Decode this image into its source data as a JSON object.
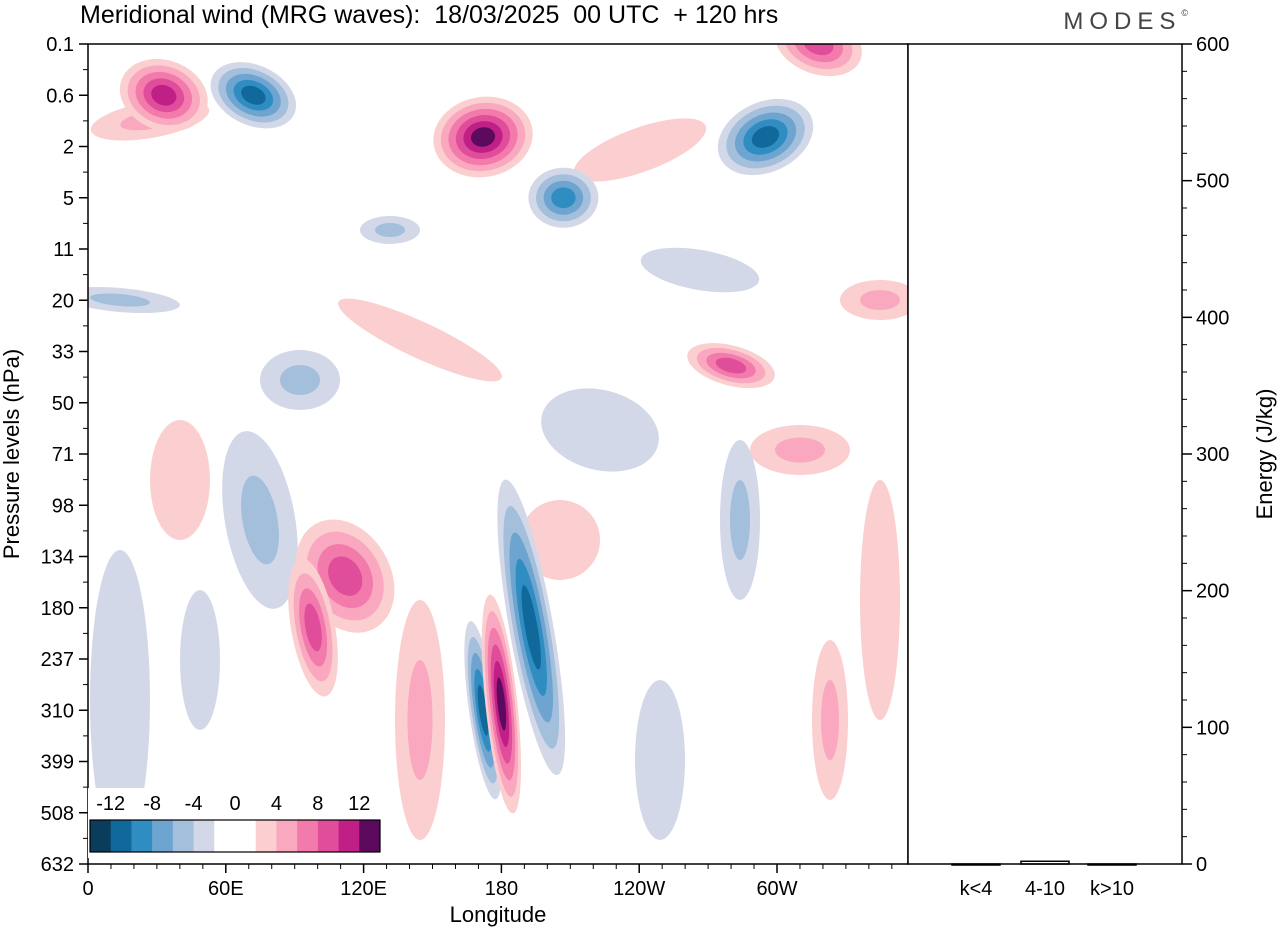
{
  "title": "Meridional wind (MRG waves):  18/03/2025  00 UTC  + 120 hrs",
  "brand": "MODES",
  "brand_mark": "©",
  "colors": {
    "neg": [
      "#0a3d5c",
      "#11689a",
      "#2f8dc2",
      "#6ea5d0",
      "#a3bfdc",
      "#d3d8e8"
    ],
    "pos": [
      "#fbcfcf",
      "#f9a8bf",
      "#f27bab",
      "#e04d9a",
      "#c01f86",
      "#5c0a5e"
    ]
  },
  "chart_data": [
    {
      "type": "heatmap",
      "variable": "meridional wind",
      "xlabel": "Longitude",
      "ylabel": "Pressure levels (hPa)",
      "x_ticks": [
        "0",
        "60E",
        "120E",
        "180",
        "120W",
        "60W"
      ],
      "y_ticks": [
        "0.1",
        "0.6",
        "2",
        "5",
        "11",
        "20",
        "33",
        "50",
        "71",
        "98",
        "134",
        "180",
        "237",
        "310",
        "399",
        "508",
        "632"
      ],
      "colorbar": {
        "labels": [
          "-12",
          "-8",
          "-4",
          "0",
          "4",
          "8",
          "12"
        ],
        "levels": [
          -14,
          -12,
          -10,
          -8,
          -6,
          -4,
          -2,
          2,
          4,
          6,
          8,
          10,
          12,
          14
        ]
      },
      "features": [
        {
          "lon": 172,
          "hPa": 310,
          "value": -10
        },
        {
          "lon": 180,
          "hPa": 300,
          "value": 14
        },
        {
          "lon": 193,
          "hPa": 200,
          "value": -10
        },
        {
          "lon": 112,
          "hPa": 150,
          "value": 8
        },
        {
          "lon": 98,
          "hPa": 200,
          "value": 8
        },
        {
          "lon": 172,
          "hPa": 1.6,
          "value": 12
        },
        {
          "lon": 33,
          "hPa": 0.6,
          "value": 10
        },
        {
          "lon": 72,
          "hPa": 0.6,
          "value": -10
        },
        {
          "lon": 295,
          "hPa": 1.6,
          "value": -10
        },
        {
          "lon": 207,
          "hPa": 5,
          "value": -8
        },
        {
          "lon": 280,
          "hPa": 37,
          "value": 8
        },
        {
          "lon": 318,
          "hPa": 0.1,
          "value": 8
        }
      ]
    },
    {
      "type": "bar",
      "categories": [
        "k<4",
        "4-10",
        "k>10"
      ],
      "values": [
        0,
        2,
        0
      ],
      "ylabel": "Energy (J/kg)",
      "ylim": [
        0,
        600
      ],
      "y_ticks": [
        "0",
        "100",
        "200",
        "300",
        "400",
        "500",
        "600"
      ]
    }
  ]
}
